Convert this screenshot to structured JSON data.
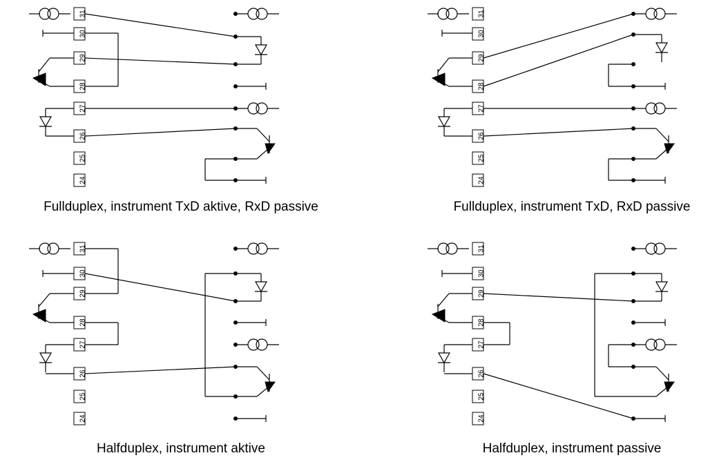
{
  "panels": [
    {
      "caption": "Fullduplex, instrument TxD aktive, RxD passive",
      "terminals": [
        "31",
        "30",
        "29",
        "28",
        "27",
        "26",
        "25",
        "24"
      ]
    },
    {
      "caption": "Fullduplex, instrument TxD, RxD passive",
      "terminals": [
        "31",
        "30",
        "29",
        "28",
        "27",
        "26",
        "25",
        "24"
      ]
    },
    {
      "caption": "Halfduplex, instrument aktive",
      "terminals": [
        "31",
        "30",
        "29",
        "28",
        "27",
        "26",
        "25",
        "24"
      ]
    },
    {
      "caption": "Halfduplex, instrument passive",
      "terminals": [
        "31",
        "30",
        "29",
        "28",
        "27",
        "26",
        "25",
        "24"
      ]
    }
  ]
}
